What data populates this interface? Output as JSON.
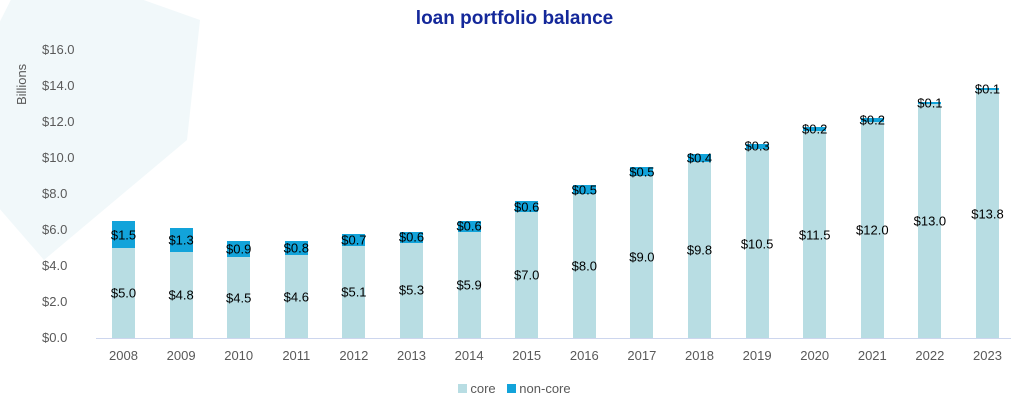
{
  "chart_data": {
    "type": "bar",
    "stacked": true,
    "title": "loan portfolio balance",
    "xlabel": "",
    "ylabel": "Billions",
    "ylim": [
      0,
      16
    ],
    "yticks": [
      "$0.0",
      "$2.0",
      "$4.0",
      "$6.0",
      "$8.0",
      "$10.0",
      "$12.0",
      "$14.0",
      "$16.0"
    ],
    "grid": false,
    "legend_position": "bottom",
    "categories": [
      "2008",
      "2009",
      "2010",
      "2011",
      "2012",
      "2013",
      "2014",
      "2015",
      "2016",
      "2017",
      "2018",
      "2019",
      "2020",
      "2021",
      "2022",
      "2023"
    ],
    "series": [
      {
        "name": "core",
        "color": "#b8dde3",
        "values": [
          5.0,
          4.8,
          4.5,
          4.6,
          5.1,
          5.3,
          5.9,
          7.0,
          8.0,
          9.0,
          9.8,
          10.5,
          11.5,
          12.0,
          13.0,
          13.8
        ],
        "labels": [
          "$5.0",
          "$4.8",
          "$4.5",
          "$4.6",
          "$5.1",
          "$5.3",
          "$5.9",
          "$7.0",
          "$8.0",
          "$9.0",
          "$9.8",
          "$10.5",
          "$11.5",
          "$12.0",
          "$13.0",
          "$13.8"
        ]
      },
      {
        "name": "non-core",
        "color": "#12a3da",
        "values": [
          1.5,
          1.3,
          0.9,
          0.8,
          0.7,
          0.6,
          0.6,
          0.6,
          0.5,
          0.5,
          0.4,
          0.3,
          0.2,
          0.2,
          0.1,
          0.1
        ],
        "labels": [
          "$1.5",
          "$1.3",
          "$0.9",
          "$0.8",
          "$0.7",
          "$0.6",
          "$0.6",
          "$0.6",
          "$0.5",
          "$0.5",
          "$0.4",
          "$0.3",
          "$0.2",
          "$0.2",
          "$0.1",
          "$0.1"
        ]
      }
    ]
  },
  "legend": [
    {
      "label": "core",
      "color": "#b8dde3"
    },
    {
      "label": "non-core",
      "color": "#12a3da"
    }
  ]
}
